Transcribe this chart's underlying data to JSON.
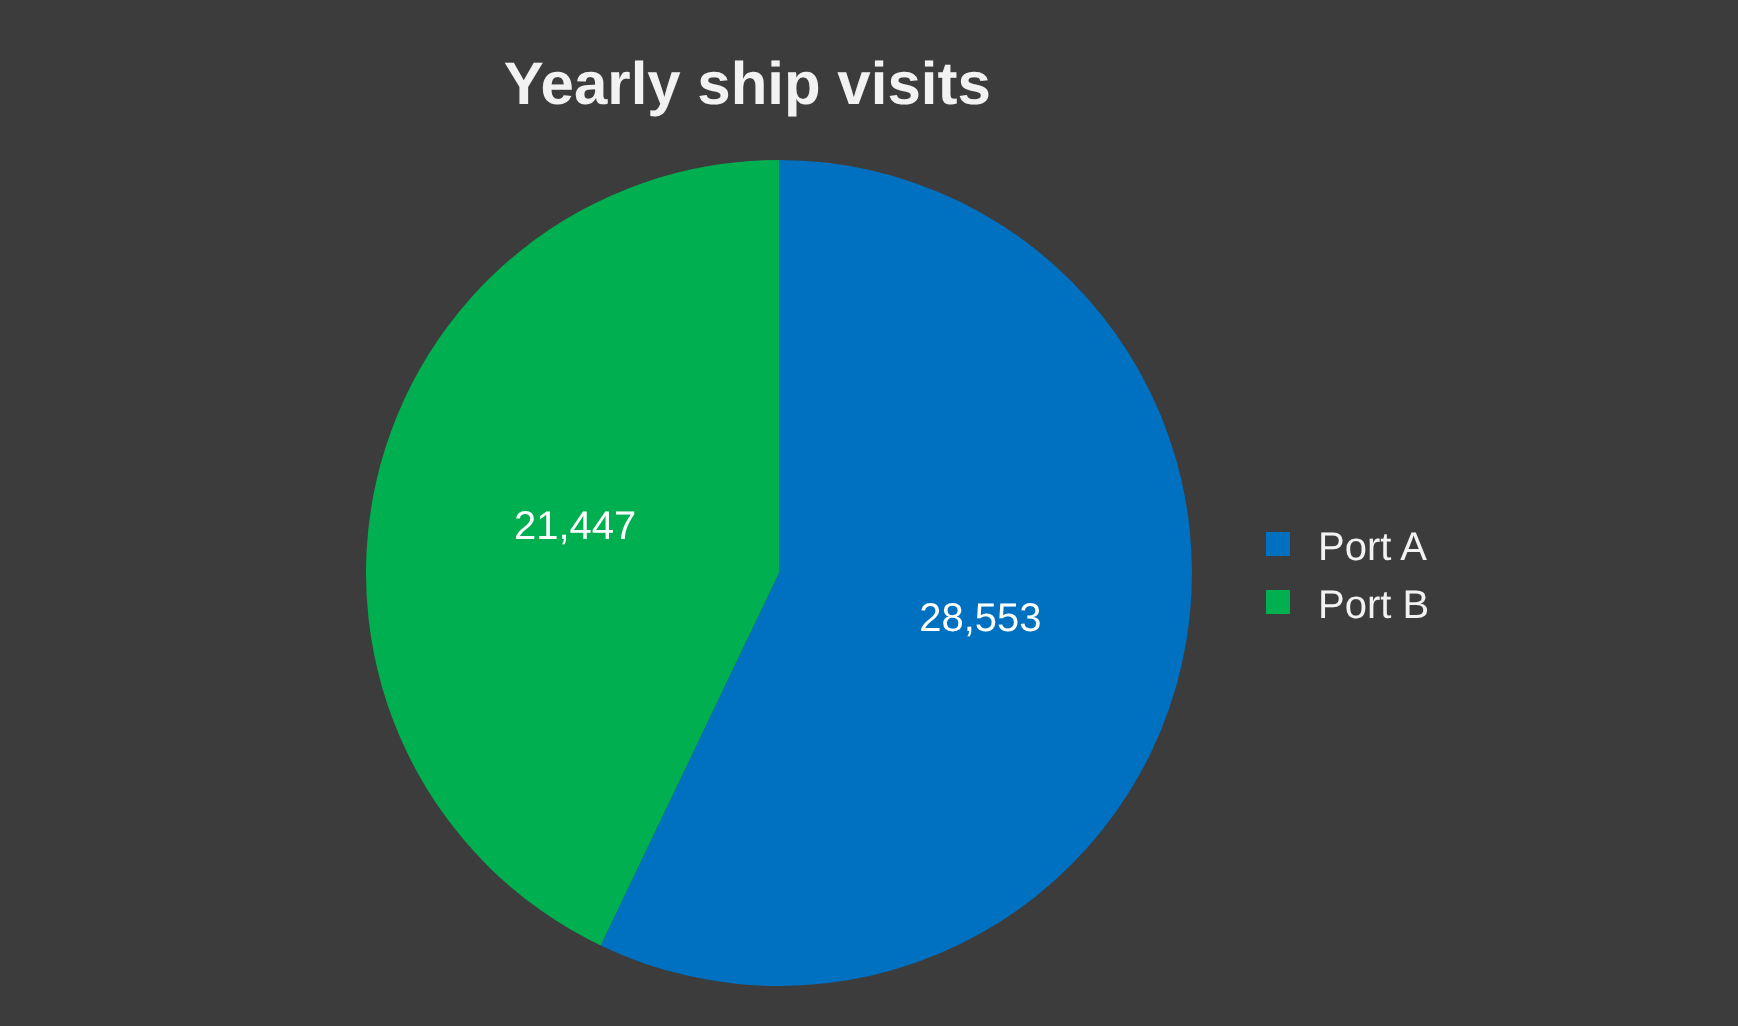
{
  "chart_data": {
    "type": "pie",
    "title": "Yearly ship visits",
    "categories": [
      "Port A",
      "Port B"
    ],
    "values": [
      28553,
      21447
    ],
    "colors": [
      "#0070c0",
      "#00b050"
    ],
    "value_labels": [
      "28,553",
      "21,447"
    ],
    "legend": "right"
  }
}
